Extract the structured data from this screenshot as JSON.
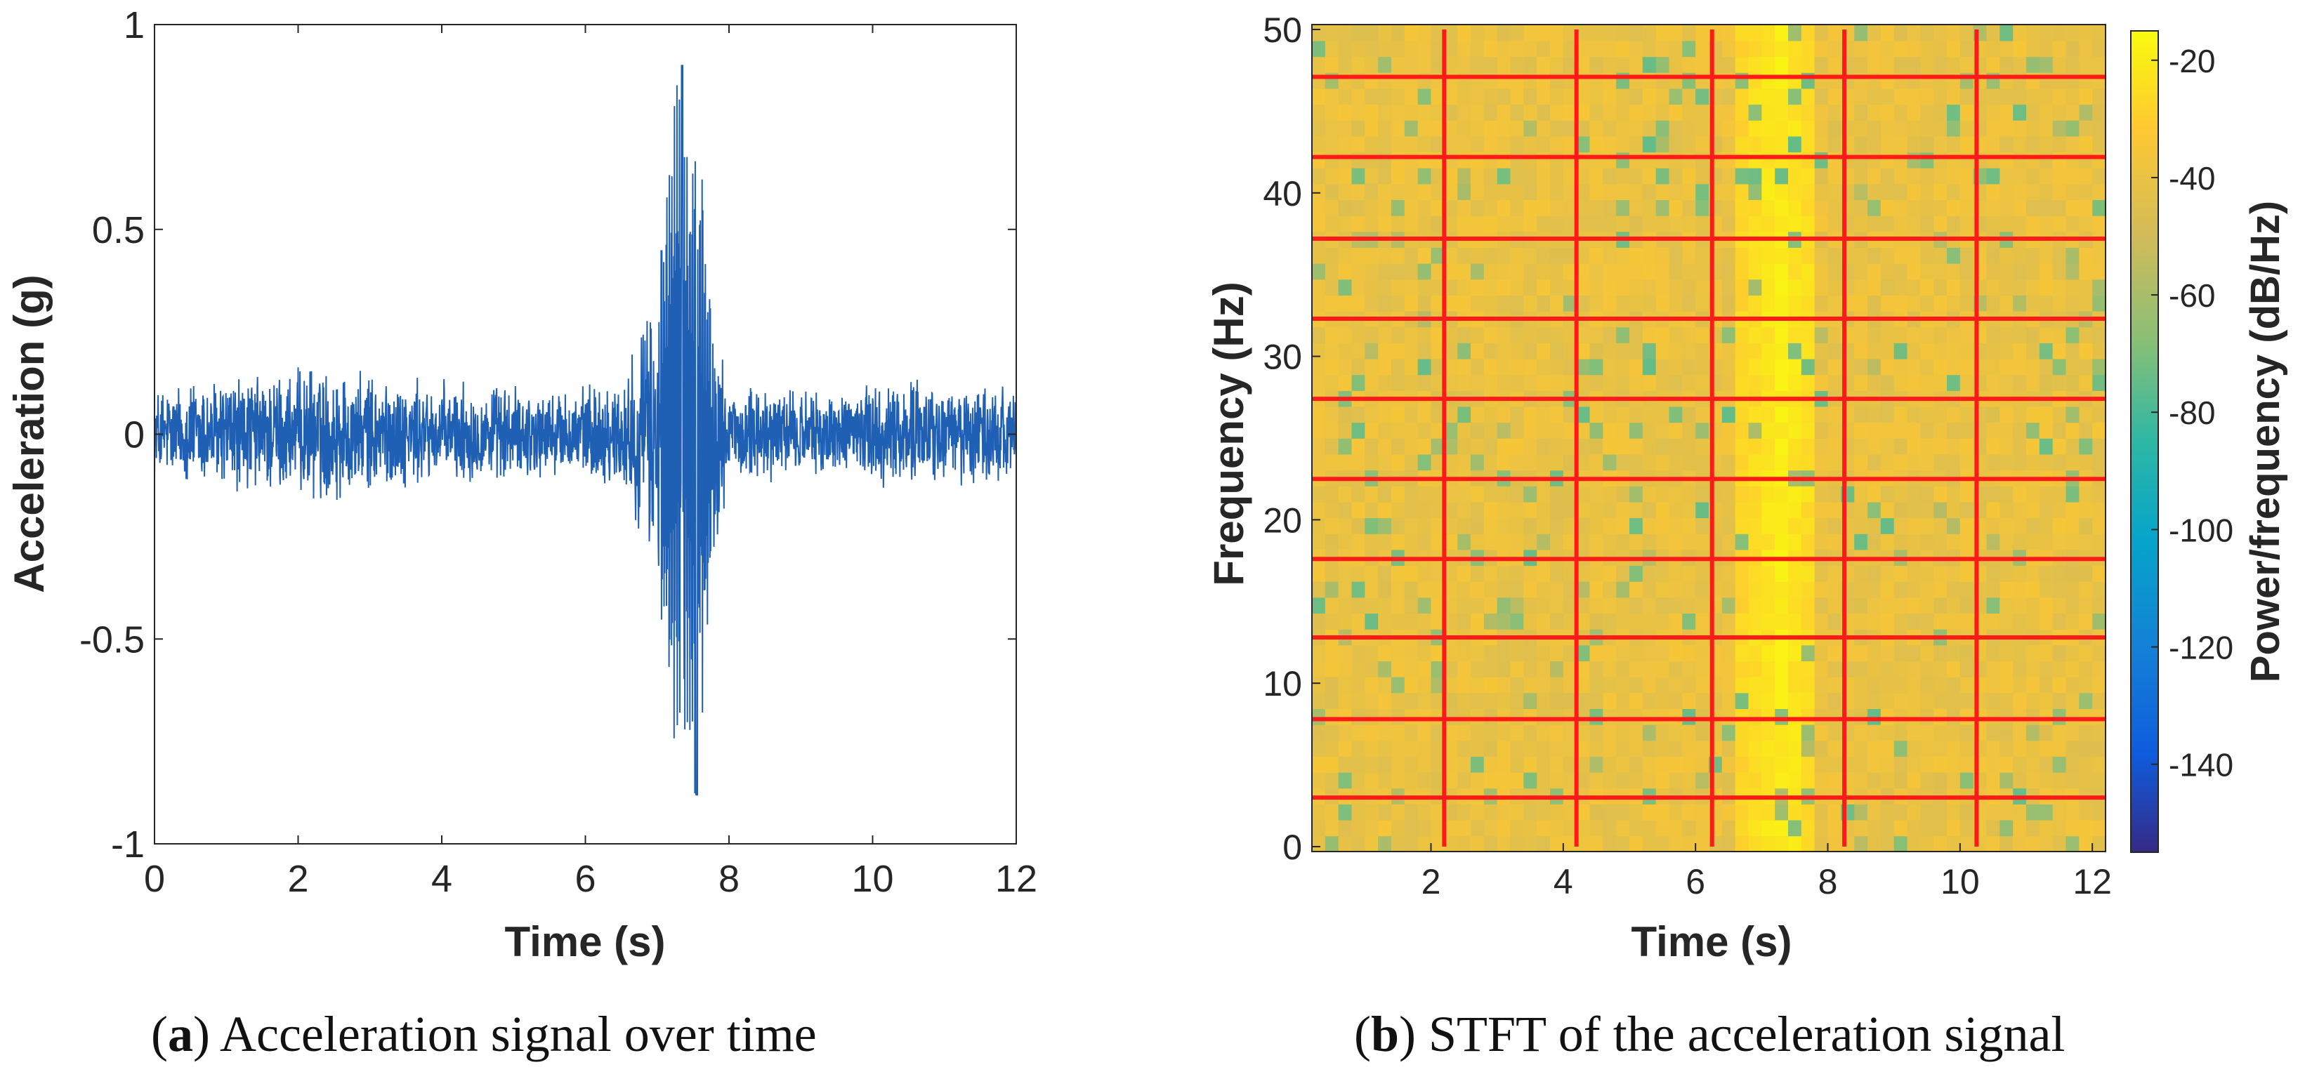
{
  "figure": {
    "caption_a": {
      "letter": "a",
      "text": "Acceleration signal over time"
    },
    "caption_b": {
      "letter": "b",
      "text": "STFT of the acceleration signal"
    }
  },
  "colors": {
    "signal": "#1f5fb4",
    "grid_lines": "#ff1a1a",
    "axis": "#262626"
  },
  "chart_data": [
    {
      "id": "a",
      "type": "line",
      "title": "",
      "xlabel": "Time (s)",
      "ylabel": "Acceleration (g)",
      "xlim": [
        0,
        12
      ],
      "ylim": [
        -1,
        1
      ],
      "xticks": [
        "0",
        "2",
        "4",
        "6",
        "8",
        "10",
        "12"
      ],
      "yticks": [
        "-1",
        "-0.5",
        "0",
        "0.5",
        "1"
      ],
      "grid": false,
      "series": [
        {
          "name": "Acceleration",
          "description_points": {
            "t": [
              0,
              0.5,
              2.5,
              3.2,
              4.2,
              5.6,
              6.5,
              7.1,
              7.3,
              7.4,
              7.55,
              7.7,
              8.0,
              8.5,
              9.5,
              10.2,
              11.7,
              12
            ],
            "envelope": [
              0.15,
              0.18,
              0.22,
              0.18,
              0.17,
              0.15,
              0.18,
              0.55,
              0.9,
              0.75,
              0.88,
              0.5,
              0.15,
              0.16,
              0.13,
              0.17,
              0.18,
              0.12
            ]
          }
        }
      ],
      "peaks": {
        "max": 0.9,
        "min": -0.88,
        "peak_time": 7.4
      }
    },
    {
      "id": "b",
      "type": "heatmap",
      "title": "",
      "xlabel": "Time (s)",
      "ylabel": "Frequency (Hz)",
      "colorbar_label": "Power/frequency (dB/Hz)",
      "xlim": [
        0.2,
        12.2
      ],
      "ylim": [
        -0.3,
        50.3
      ],
      "clim": [
        -155,
        -15
      ],
      "xticks": [
        "2",
        "4",
        "6",
        "8",
        "10",
        "12"
      ],
      "xtick_values": [
        2,
        4,
        6,
        8,
        10,
        12
      ],
      "yticks": [
        "0",
        "10",
        "20",
        "30",
        "40",
        "50"
      ],
      "ytick_values": [
        0,
        10,
        20,
        30,
        40,
        50
      ],
      "cbar_ticks": [
        "-20",
        "-40",
        "-60",
        "-80",
        "-100",
        "-120",
        "-140"
      ],
      "cbar_tick_values": [
        -20,
        -40,
        -60,
        -80,
        -100,
        -120,
        -140
      ],
      "red_vertical_lines_s": [
        2.2,
        4.2,
        6.25,
        8.25,
        10.25
      ],
      "red_horizontal_lines_hz": [
        3,
        7.8,
        12.8,
        17.6,
        22.5,
        27.4,
        32.3,
        37.2,
        42.2,
        47.1
      ],
      "dominant_band": {
        "time_s": 7.3,
        "power_db": -20
      },
      "background_power_db": -40
    }
  ]
}
